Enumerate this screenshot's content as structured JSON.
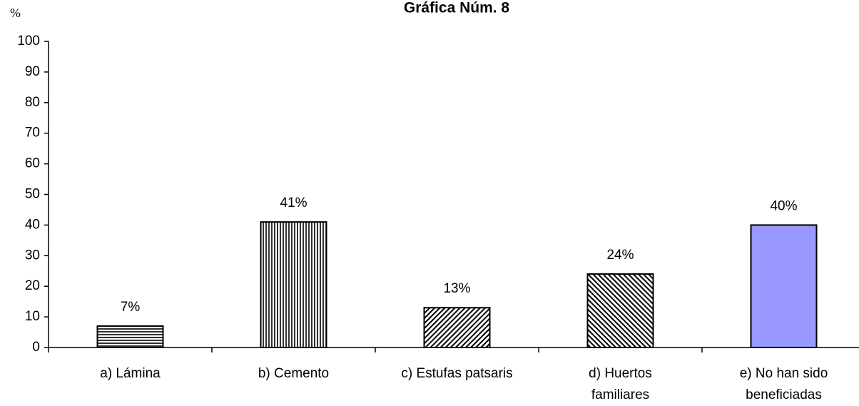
{
  "chart_data": {
    "type": "bar",
    "title": "Gráfica Núm. 8",
    "y_label": "%",
    "categories": [
      "a) Lámina",
      "b) Cemento",
      "c) Estufas patsaris",
      "d) Huertos\nfamiliares",
      "e) No han sido\nbeneficiadas"
    ],
    "values": [
      7,
      41,
      13,
      24,
      40
    ],
    "value_labels": [
      "7%",
      "41%",
      "13%",
      "24%",
      "40%"
    ],
    "patterns": [
      "horizontal",
      "vertical",
      "diagonal-down",
      "diagonal-up",
      "solid"
    ],
    "color": "#9999ff",
    "ylim": [
      0,
      100
    ],
    "yticks": [
      0,
      10,
      20,
      30,
      40,
      50,
      60,
      70,
      80,
      90,
      100
    ],
    "grid": false
  }
}
